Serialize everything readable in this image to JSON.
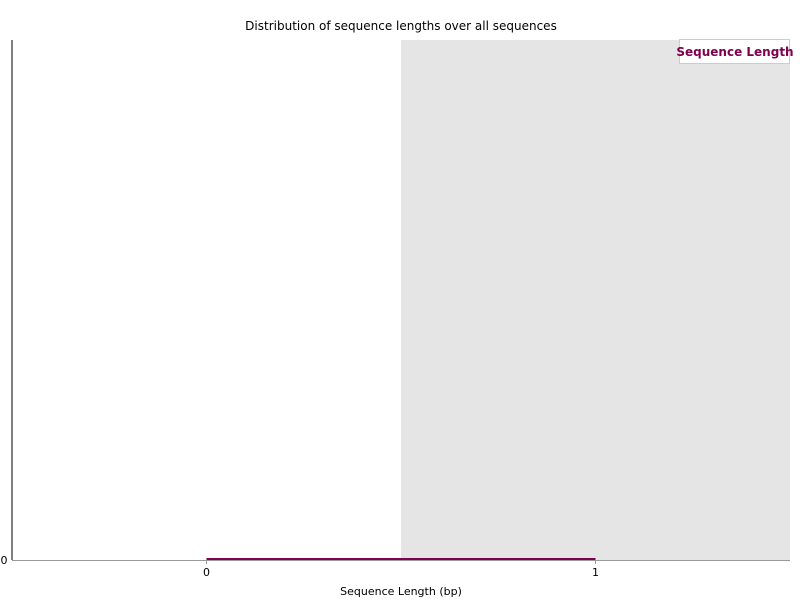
{
  "colors": {
    "series": "#800050",
    "shade": "#e5e5e5",
    "axis": "#000000",
    "baseline": "#999999",
    "background": "#ffffff"
  },
  "chart_data": {
    "type": "line",
    "title": "Distribution of sequence lengths over all sequences",
    "xlabel": "Sequence Length (bp)",
    "ylabel": "",
    "x": [
      0,
      1
    ],
    "x_tick_labels": [
      "0",
      "1"
    ],
    "y_tick_labels": [
      "0"
    ],
    "xlim": [
      -0.5,
      1.5
    ],
    "ylim": [
      0,
      1
    ],
    "grid": false,
    "legend_position": "top-right",
    "shaded_bands": [
      {
        "from": 0.5,
        "to": 1.5
      }
    ],
    "series": [
      {
        "name": "Sequence Length",
        "values": [
          0,
          0
        ]
      }
    ]
  }
}
